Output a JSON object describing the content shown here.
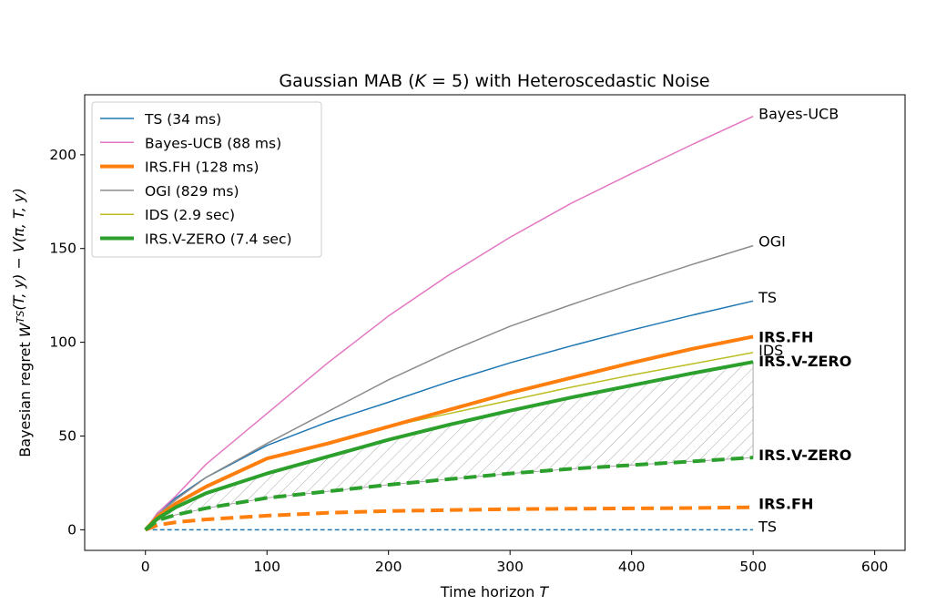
{
  "chart_data": {
    "type": "line",
    "title": "Gaussian MAB (K = 5) with Heteroscedastic Noise",
    "xlabel": "Time horizon T",
    "ylabel": "Bayesian regret W^TS(T, y) − V(π, T, y)",
    "xlim": [
      -50,
      625
    ],
    "ylim": [
      -11,
      232
    ],
    "x_ticks": [
      0,
      100,
      200,
      300,
      400,
      500,
      600
    ],
    "y_ticks": [
      0,
      50,
      100,
      150,
      200
    ],
    "x": [
      0,
      10,
      25,
      50,
      100,
      150,
      200,
      250,
      300,
      350,
      400,
      450,
      500
    ],
    "series": [
      {
        "name": "TS (34 ms)",
        "style": "solid",
        "color": "#1f77b4",
        "width": 1.5,
        "values": [
          0,
          9,
          17,
          28,
          45,
          57.5,
          68,
          79,
          89,
          98,
          106.5,
          114.5,
          122
        ]
      },
      {
        "name": "Bayes-UCB (88 ms)",
        "style": "solid",
        "color": "#e377c2",
        "width": 1.5,
        "values": [
          0,
          9,
          18,
          35,
          62,
          89,
          114,
          136,
          156,
          174,
          190,
          205.5,
          220.5
        ]
      },
      {
        "name": "IRS.FH (128 ms)",
        "style": "solid",
        "color": "#ff7f0e",
        "width": 4,
        "values": [
          0,
          7,
          14,
          23,
          38,
          46,
          55,
          64,
          73,
          81,
          89,
          96.5,
          103
        ]
      },
      {
        "name": "OGI (829 ms)",
        "style": "solid",
        "color": "#8c8c8c",
        "width": 1.5,
        "values": [
          0,
          8,
          16,
          28,
          46,
          63,
          80,
          95,
          108.5,
          120,
          131,
          141.5,
          151.5
        ]
      },
      {
        "name": "IDS (2.9 sec)",
        "style": "solid",
        "color": "#bcbd22",
        "width": 1.5,
        "values": [
          0,
          7,
          14,
          23,
          38,
          46,
          55,
          62,
          69,
          76,
          82.5,
          88.5,
          94.5
        ]
      },
      {
        "name": "IRS.V-ZERO (7.4 sec)",
        "style": "solid",
        "color": "#2ca02c",
        "width": 4,
        "values": [
          0,
          6,
          12,
          19.5,
          30,
          39,
          48,
          56,
          63.5,
          70.5,
          77,
          83.5,
          89.5
        ]
      },
      {
        "name": "",
        "style": "dashed",
        "color": "#1f77b4",
        "width": 1.5,
        "values": [
          0,
          0,
          0,
          0,
          0,
          0,
          0,
          0,
          0,
          0,
          0,
          0,
          0
        ]
      },
      {
        "name": "",
        "style": "dashed",
        "color": "#ff7f0e",
        "width": 4,
        "values": [
          0,
          2.5,
          4,
          5.5,
          7.5,
          9,
          10,
          10.5,
          11,
          11.2,
          11.4,
          11.6,
          12
        ]
      },
      {
        "name": "",
        "style": "dashed",
        "color": "#2ca02c",
        "width": 4,
        "values": [
          0,
          5,
          8,
          11.5,
          17,
          20.5,
          24,
          27,
          30,
          32.5,
          34.5,
          36.5,
          38.5
        ]
      }
    ],
    "hatched_region": {
      "between": [
        "IRS.V-ZERO (7.4 sec)",
        "IRS.V-ZERO dashed"
      ],
      "color": "#aaaaaa"
    },
    "end_labels": [
      {
        "text": "Bayes-UCB",
        "y": 222,
        "bold": false
      },
      {
        "text": "OGI",
        "y": 154,
        "bold": false
      },
      {
        "text": "TS",
        "y": 124,
        "bold": false
      },
      {
        "text": "IRS.FH",
        "y": 103,
        "bold": true
      },
      {
        "text": "IDS",
        "y": 96,
        "bold": false
      },
      {
        "text": "IRS.V-ZERO",
        "y": 90,
        "bold": true
      },
      {
        "text": "IRS.V-ZERO",
        "y": 40,
        "bold": true
      },
      {
        "text": "IRS.FH",
        "y": 14,
        "bold": true
      },
      {
        "text": "TS",
        "y": 2,
        "bold": false
      }
    ],
    "legend_position": "upper-left",
    "grid": false
  }
}
